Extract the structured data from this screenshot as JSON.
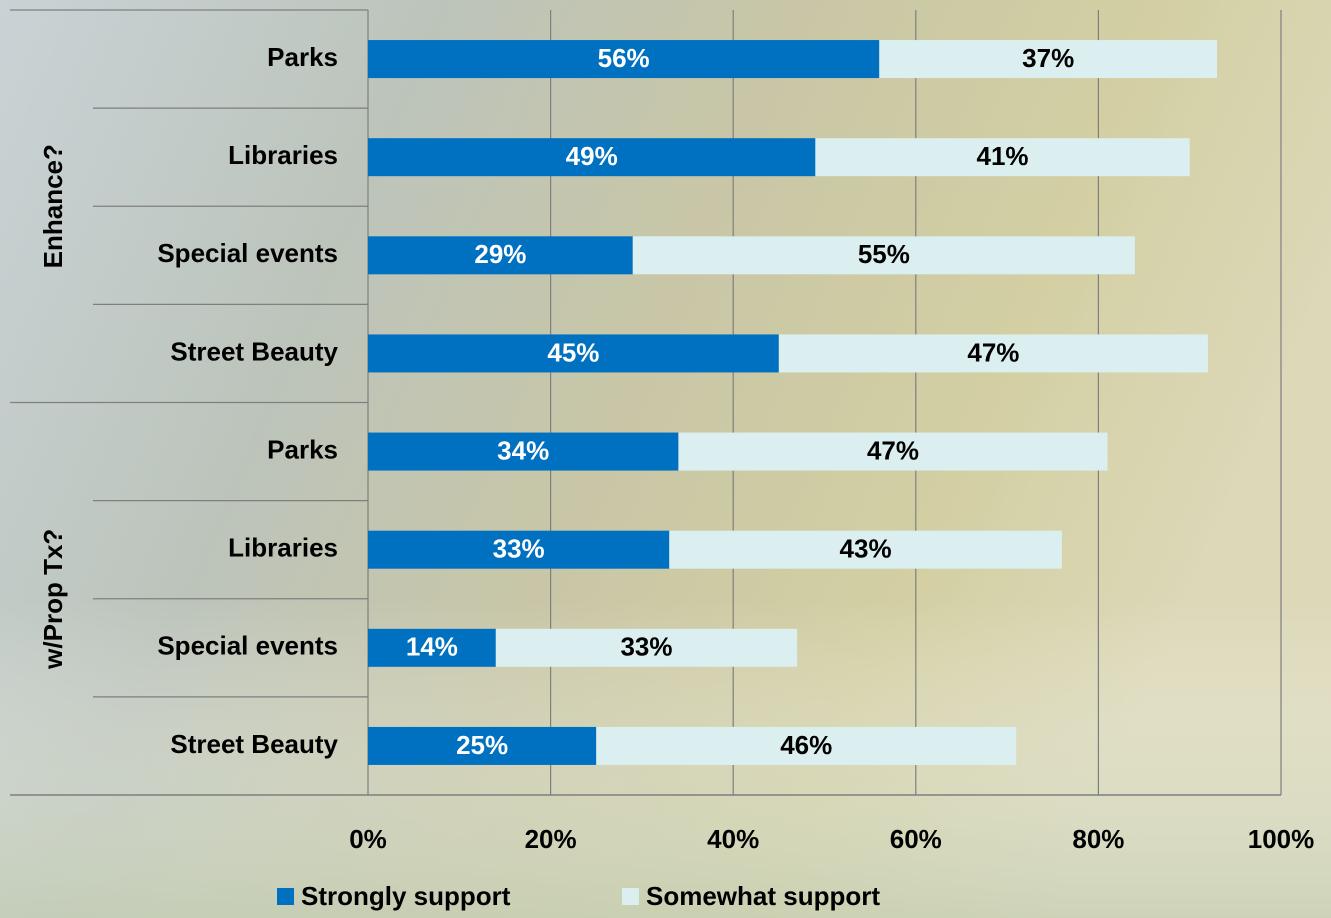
{
  "chart_data": {
    "type": "stacked-bar-horizontal",
    "groups": [
      {
        "name": "Enhance?",
        "categories": [
          "Parks",
          "Libraries",
          "Special events",
          "Street Beauty"
        ]
      },
      {
        "name": "w/Prop Tx?",
        "categories": [
          "Parks",
          "Libraries",
          "Special events",
          "Street Beauty"
        ]
      }
    ],
    "series": [
      {
        "name": "Strongly support",
        "color": "#0070c0",
        "label_color": "#ffffff",
        "values": [
          56,
          49,
          29,
          45,
          34,
          33,
          14,
          25
        ],
        "value_labels": [
          "56%",
          "49%",
          "29%",
          "45%",
          "34%",
          "33%",
          "14%",
          "25%"
        ]
      },
      {
        "name": "Somewhat support",
        "color": "#dbeef0",
        "label_color": "#000000",
        "values": [
          37,
          41,
          55,
          47,
          47,
          43,
          33,
          46
        ],
        "value_labels": [
          "37%",
          "41%",
          "55%",
          "47%",
          "47%",
          "43%",
          "33%",
          "46%"
        ]
      }
    ],
    "xlim": [
      0,
      100
    ],
    "xticks": [
      {
        "value": 0,
        "label": "0%"
      },
      {
        "value": 20,
        "label": "20%"
      },
      {
        "value": 40,
        "label": "40%"
      },
      {
        "value": 60,
        "label": "60%"
      },
      {
        "value": 80,
        "label": "80%"
      },
      {
        "value": 100,
        "label": "100%"
      }
    ],
    "grid": true,
    "legend": "bottom"
  }
}
